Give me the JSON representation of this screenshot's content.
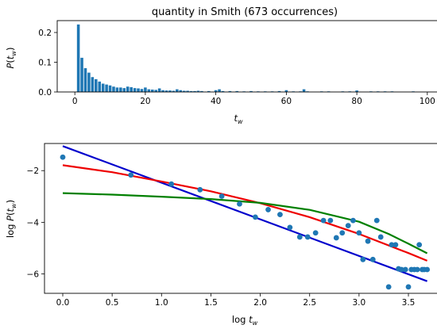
{
  "chart_data": [
    {
      "type": "bar",
      "title": "quantity in Smith (673 occurrences)",
      "xlabel": "t_w",
      "ylabel": "P(t_w)",
      "xlim": [
        -5,
        105
      ],
      "ylim": [
        0,
        0.24
      ],
      "xticks": [
        0,
        20,
        40,
        60,
        80,
        100
      ],
      "yticks": [
        0.0,
        0.1,
        0.2
      ],
      "ytick_labels": [
        "0.0",
        "0.1",
        "0.2"
      ],
      "bar_color": "#1f77b4",
      "x": [
        1,
        2,
        3,
        4,
        5,
        6,
        7,
        8,
        9,
        10,
        11,
        12,
        13,
        14,
        15,
        16,
        17,
        18,
        19,
        20,
        21,
        22,
        23,
        24,
        25,
        26,
        27,
        28,
        29,
        30,
        31,
        32,
        33,
        34,
        35,
        36,
        38,
        40,
        41,
        42,
        44,
        46,
        48,
        50,
        52,
        54,
        56,
        58,
        60,
        62,
        64,
        65,
        66,
        70,
        72,
        76,
        78,
        80,
        84,
        86,
        88,
        90,
        96
      ],
      "values": [
        0.227,
        0.115,
        0.08,
        0.065,
        0.05,
        0.043,
        0.035,
        0.028,
        0.025,
        0.022,
        0.018,
        0.015,
        0.015,
        0.013,
        0.018,
        0.016,
        0.013,
        0.012,
        0.01,
        0.015,
        0.009,
        0.008,
        0.007,
        0.012,
        0.006,
        0.005,
        0.005,
        0.004,
        0.009,
        0.006,
        0.004,
        0.004,
        0.003,
        0.003,
        0.004,
        0.003,
        0.003,
        0.006,
        0.009,
        0.003,
        0.003,
        0.003,
        0.002,
        0.003,
        0.002,
        0.002,
        0.002,
        0.003,
        0.006,
        0.002,
        0.002,
        0.009,
        0.002,
        0.002,
        0.002,
        0.002,
        0.002,
        0.005,
        0.002,
        0.002,
        0.002,
        0.002,
        0.002
      ]
    },
    {
      "type": "scatter",
      "xlabel": "log t_w",
      "ylabel": "log P(t_w)",
      "xlim": [
        -0.185,
        3.87
      ],
      "ylim": [
        -6.75,
        -0.95
      ],
      "xticks": [
        0.0,
        0.5,
        1.0,
        1.5,
        2.0,
        2.5,
        3.0,
        3.5
      ],
      "xtick_labels": [
        "0.0",
        "0.5",
        "1.0",
        "1.5",
        "2.0",
        "2.5",
        "3.0",
        "3.5"
      ],
      "yticks": [
        -6,
        -4,
        -2
      ],
      "ytick_labels": [
        "−6",
        "−4",
        "−2"
      ],
      "point_color": "#1f77b4",
      "points": [
        [
          0.0,
          -1.48
        ],
        [
          0.69,
          -2.17
        ],
        [
          1.1,
          -2.52
        ],
        [
          1.39,
          -2.74
        ],
        [
          1.61,
          -2.99
        ],
        [
          1.79,
          -3.29
        ],
        [
          1.95,
          -3.8
        ],
        [
          2.08,
          -3.51
        ],
        [
          2.2,
          -3.7
        ],
        [
          2.3,
          -4.2
        ],
        [
          2.4,
          -4.57
        ],
        [
          2.48,
          -4.57
        ],
        [
          2.56,
          -4.41
        ],
        [
          2.64,
          -3.93
        ],
        [
          2.71,
          -3.93
        ],
        [
          2.77,
          -4.6
        ],
        [
          2.83,
          -4.41
        ],
        [
          2.89,
          -4.13
        ],
        [
          2.94,
          -3.93
        ],
        [
          3.0,
          -4.41
        ],
        [
          3.04,
          -5.44
        ],
        [
          3.09,
          -4.73
        ],
        [
          3.14,
          -5.44
        ],
        [
          3.18,
          -3.93
        ],
        [
          3.22,
          -4.57
        ],
        [
          3.3,
          -6.5
        ],
        [
          3.33,
          -4.87
        ],
        [
          3.37,
          -4.87
        ],
        [
          3.4,
          -5.8
        ],
        [
          3.43,
          -5.83
        ],
        [
          3.47,
          -5.83
        ],
        [
          3.5,
          -6.5
        ],
        [
          3.53,
          -5.83
        ],
        [
          3.56,
          -5.83
        ],
        [
          3.59,
          -5.83
        ],
        [
          3.61,
          -4.87
        ],
        [
          3.64,
          -5.83
        ],
        [
          3.66,
          -5.83
        ],
        [
          3.69,
          -5.83
        ]
      ],
      "series": [
        {
          "color": "#0000cc",
          "points": [
            [
              0.0,
              -1.05
            ],
            [
              3.69,
              -6.28
            ]
          ]
        },
        {
          "color": "#ee0000",
          "points": [
            [
              0.0,
              -1.79
            ],
            [
              0.5,
              -2.06
            ],
            [
              1.0,
              -2.42
            ],
            [
              1.5,
              -2.8
            ],
            [
              2.0,
              -3.26
            ],
            [
              2.5,
              -3.8
            ],
            [
              3.0,
              -4.45
            ],
            [
              3.5,
              -5.19
            ],
            [
              3.69,
              -5.49
            ]
          ]
        },
        {
          "color": "#008000",
          "points": [
            [
              0.0,
              -2.87
            ],
            [
              0.5,
              -2.93
            ],
            [
              1.0,
              -3.01
            ],
            [
              1.5,
              -3.1
            ],
            [
              2.0,
              -3.25
            ],
            [
              2.5,
              -3.52
            ],
            [
              3.0,
              -3.98
            ],
            [
              3.3,
              -4.45
            ],
            [
              3.5,
              -4.83
            ],
            [
              3.69,
              -5.2
            ]
          ]
        }
      ]
    }
  ]
}
